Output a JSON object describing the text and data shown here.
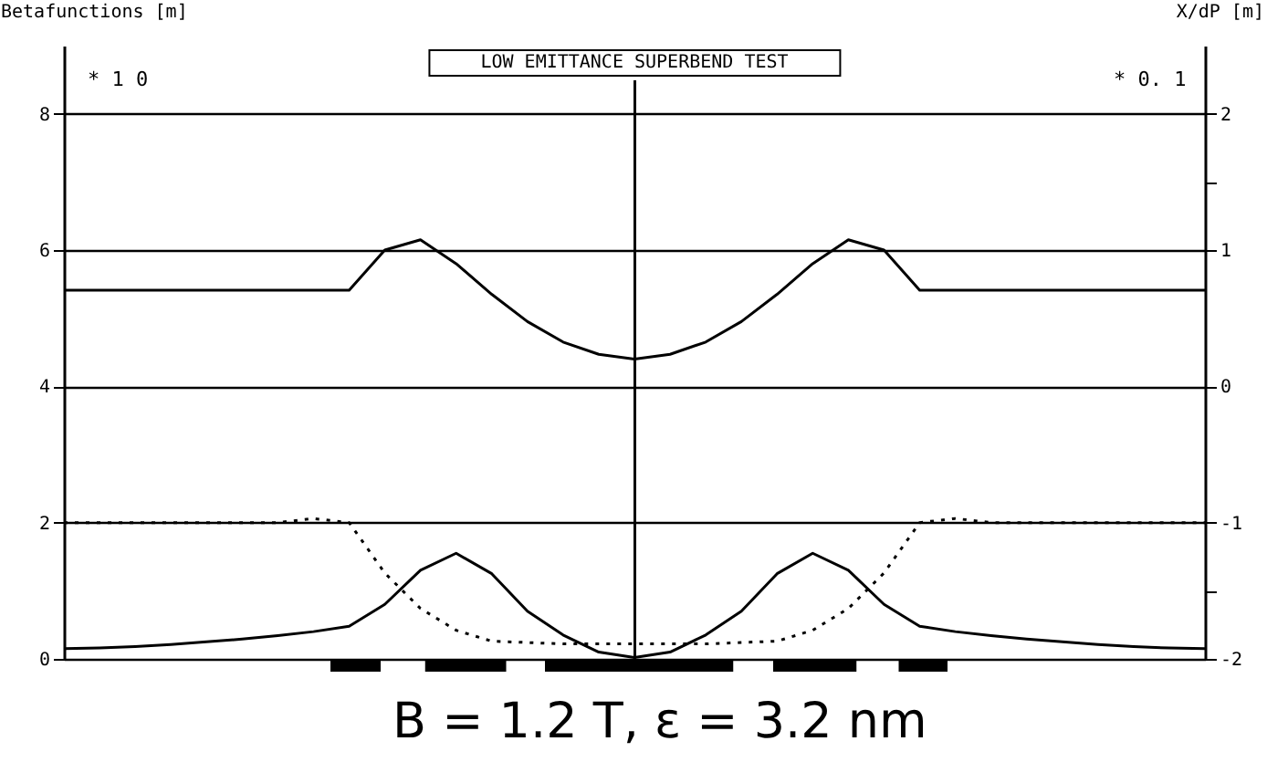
{
  "chart_data": {
    "type": "line",
    "title": "LOW EMITTANCE SUPERBEND TEST",
    "ylabel": "Betafunctions [m]",
    "y2label": "X/dP [m]",
    "annotations": [
      "* 1 0",
      "* 0. 1",
      "B = 1.2 T,   ε = 3.2 nm"
    ],
    "categories": [
      null,
      null,
      null,
      null,
      null,
      null,
      null,
      null,
      null,
      null,
      null,
      null,
      null,
      null,
      null,
      null,
      null,
      null,
      null,
      null,
      null,
      null,
      null,
      null,
      null,
      null,
      null,
      null,
      null,
      null,
      null,
      null,
      null
    ],
    "series": [
      {
        "color": "#000000",
        "values": [
          5.41,
          5.41,
          5.41,
          5.41,
          5.41,
          5.41,
          5.41,
          5.41,
          5.41,
          6.0,
          6.15,
          5.8,
          5.35,
          4.95,
          4.65,
          4.47,
          4.4,
          4.47,
          4.65,
          4.95,
          5.35,
          5.8,
          6.15,
          6.0,
          5.41,
          5.41,
          5.41,
          5.41,
          5.41,
          5.41,
          5.41,
          5.41,
          5.41
        ]
      },
      {
        "color": "#000000",
        "values": [
          0.15,
          0.16,
          0.18,
          0.21,
          0.25,
          0.29,
          0.34,
          0.4,
          0.48,
          0.8,
          1.3,
          1.55,
          1.25,
          0.7,
          0.35,
          0.1,
          0.02,
          0.1,
          0.35,
          0.7,
          1.25,
          1.55,
          1.3,
          0.8,
          0.48,
          0.4,
          0.34,
          0.29,
          0.25,
          0.21,
          0.18,
          0.16,
          0.15
        ]
      },
      {
        "color": "#000000",
        "axis": "y2",
        "line_style": "dotted",
        "values": [
          -1,
          -1,
          -1,
          -1,
          -1,
          -1,
          -1,
          -0.97,
          -1,
          -1.37,
          -1.63,
          -1.79,
          -1.87,
          -1.88,
          -1.89,
          -1.89,
          -1.89,
          -1.89,
          -1.89,
          -1.88,
          -1.87,
          -1.79,
          -1.63,
          -1.37,
          -1,
          -0.97,
          -1,
          -1,
          -1,
          -1,
          -1,
          -1,
          -1
        ]
      }
    ],
    "ylim": [
      0,
      9
    ],
    "yticks": [
      0,
      2,
      4,
      6,
      8
    ],
    "y2lim": [
      -2,
      2.5
    ],
    "y2ticks": [
      -2,
      {
        "value": -1.5,
        "label": null
      },
      -1,
      0,
      1,
      {
        "value": 1.5,
        "label": null
      },
      2
    ],
    "grid": "y",
    "marker": "none"
  }
}
